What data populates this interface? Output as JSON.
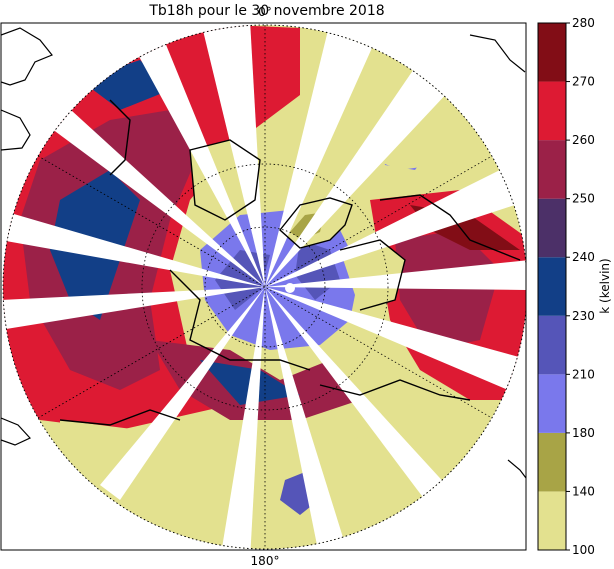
{
  "title": "Tb18h pour le 30 novembre 2018",
  "meridian_labels": {
    "top": "0°",
    "bottom": "180°"
  },
  "colorbar": {
    "label": "k (kelvin)",
    "ticks": [
      "280",
      "270",
      "260",
      "250",
      "240",
      "230",
      "210",
      "180",
      "140",
      "100"
    ],
    "bands": [
      {
        "from": 100,
        "to": 140,
        "color": "#e3e18f"
      },
      {
        "from": 140,
        "to": 180,
        "color": "#a8a446"
      },
      {
        "from": 180,
        "to": 210,
        "color": "#7a78ec"
      },
      {
        "from": 210,
        "to": 230,
        "color": "#5555b8"
      },
      {
        "from": 230,
        "to": 240,
        "color": "#123f87"
      },
      {
        "from": 240,
        "to": 250,
        "color": "#4c3068"
      },
      {
        "from": 250,
        "to": 260,
        "color": "#9b2148"
      },
      {
        "from": 260,
        "to": 270,
        "color": "#dd1a33"
      },
      {
        "from": 270,
        "to": 280,
        "color": "#820d16"
      }
    ]
  },
  "colors": {
    "land_low": "#e3e18f",
    "ice": "#7a78ec",
    "sea_cold": "#123f87",
    "sea_mid": "#9b2148",
    "sea_warm": "#dd1a33",
    "coast": "#000000"
  }
}
